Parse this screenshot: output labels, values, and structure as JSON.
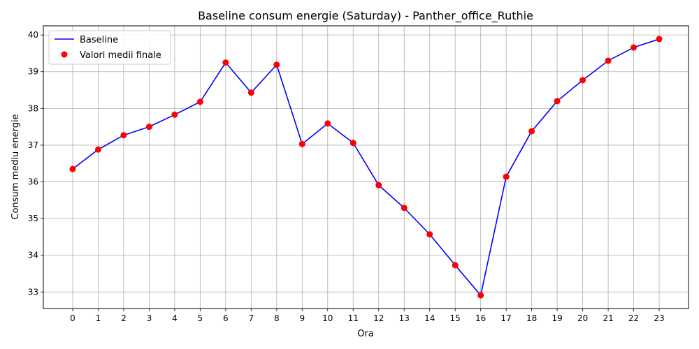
{
  "chart_data": {
    "type": "line",
    "title": "Baseline consum energie (Saturday) - Panther_office_Ruthie",
    "xlabel": "Ora",
    "ylabel": "Consum mediu energie",
    "x": [
      0,
      1,
      2,
      3,
      4,
      5,
      6,
      7,
      8,
      9,
      10,
      11,
      12,
      13,
      14,
      15,
      16,
      17,
      18,
      19,
      20,
      21,
      22,
      23
    ],
    "x_ticks": [
      "0",
      "1",
      "2",
      "3",
      "4",
      "5",
      "6",
      "7",
      "8",
      "9",
      "10",
      "11",
      "12",
      "13",
      "14",
      "15",
      "16",
      "17",
      "18",
      "19",
      "20",
      "21",
      "22",
      "23"
    ],
    "y_ticks": [
      "33",
      "34",
      "35",
      "36",
      "37",
      "38",
      "39",
      "40"
    ],
    "y_tick_values": [
      33,
      34,
      35,
      36,
      37,
      38,
      39,
      40
    ],
    "xlim": [
      -1.15,
      24.15
    ],
    "ylim": [
      32.55,
      40.25
    ],
    "grid": true,
    "legend_position": "top-left",
    "series": [
      {
        "name": "Baseline",
        "kind": "line",
        "color": "#0000ff",
        "values": [
          36.35,
          36.88,
          37.27,
          37.5,
          37.83,
          38.18,
          39.25,
          38.43,
          39.19,
          37.03,
          37.59,
          37.06,
          35.91,
          35.29,
          34.57,
          33.73,
          32.91,
          36.14,
          37.38,
          38.2,
          38.77,
          39.3,
          39.66,
          39.89
        ]
      },
      {
        "name": "Valori medii finale",
        "kind": "scatter",
        "color": "#ff0000",
        "values": [
          36.35,
          36.88,
          37.27,
          37.5,
          37.83,
          38.18,
          39.25,
          38.43,
          39.19,
          37.03,
          37.59,
          37.06,
          35.91,
          35.29,
          34.57,
          33.73,
          32.91,
          36.14,
          37.38,
          38.2,
          38.77,
          39.3,
          39.66,
          39.89
        ]
      }
    ]
  }
}
